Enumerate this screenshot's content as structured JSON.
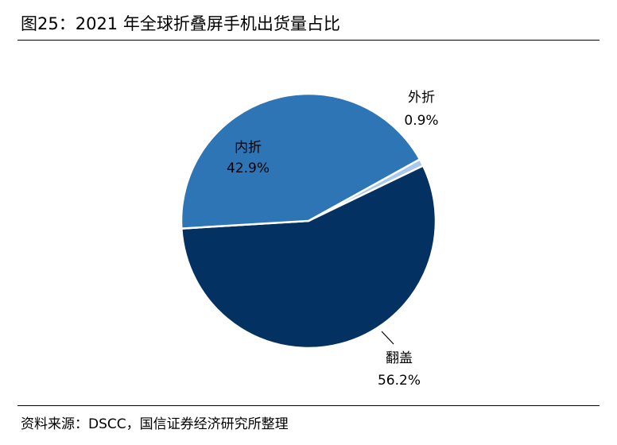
{
  "header": {
    "title": "图25：2021 年全球折叠屏手机出货量占比"
  },
  "footer": {
    "source": "资料来源：DSCC，国信证券经济研究所整理"
  },
  "chart_data": {
    "type": "pie",
    "slices": [
      {
        "name": "外折",
        "value": 0.9,
        "label": "0.9%",
        "color": "#a9c8ea"
      },
      {
        "name": "翻盖",
        "value": 56.2,
        "label": "56.2%",
        "color": "#033162"
      },
      {
        "name": "内折",
        "value": 42.9,
        "label": "42.9%",
        "color": "#2e75b6"
      }
    ],
    "unit": "%",
    "legend": "none"
  }
}
